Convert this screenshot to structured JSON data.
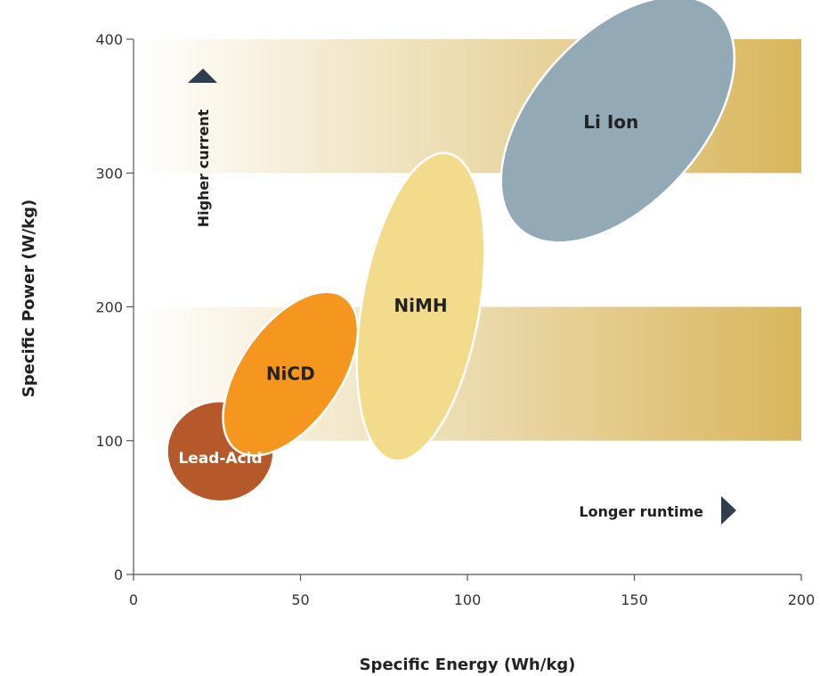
{
  "chart_data": {
    "type": "scatter",
    "xlabel": "Specific Energy (Wh/kg)",
    "ylabel": "Specific Power (W/kg)",
    "xlim": [
      0,
      200
    ],
    "ylim": [
      0,
      400
    ],
    "xticks": [
      0,
      50,
      100,
      150,
      200
    ],
    "yticks": [
      0,
      100,
      200,
      300,
      400
    ],
    "grid": false,
    "bands": [
      {
        "y_from": 300,
        "y_to": 400,
        "x_from": 0,
        "x_to": 200,
        "gradient": [
          "#ffffff",
          "#d8b65c"
        ]
      },
      {
        "y_from": 100,
        "y_to": 200,
        "x_from": 0,
        "x_to": 200,
        "gradient": [
          "#ffffff",
          "#d8b65c"
        ]
      }
    ],
    "series": [
      {
        "name": "Lead-Acid",
        "color": "#b5592a",
        "text_color": "#ffffff",
        "center": [
          26,
          92
        ],
        "x_range": [
          10,
          42
        ],
        "y_range": [
          55,
          130
        ]
      },
      {
        "name": "NiCD",
        "color": "#f5961e",
        "text_color": "#222222",
        "center": [
          47,
          150
        ],
        "x_range": [
          27,
          67
        ],
        "y_range": [
          85,
          215
        ]
      },
      {
        "name": "NiMH",
        "color": "#f2dc8c",
        "text_color": "#222222",
        "center": [
          86,
          200
        ],
        "x_range": [
          68,
          107
        ],
        "y_range": [
          80,
          320
        ]
      },
      {
        "name": "Li Ion",
        "color": "#93a9b6",
        "text_color": "#222222",
        "center": [
          145,
          340
        ],
        "x_range": [
          108,
          180
        ],
        "y_range": [
          245,
          425
        ]
      }
    ],
    "annotations": [
      {
        "text": "Higher current",
        "arrow": "up"
      },
      {
        "text": "Longer runtime",
        "arrow": "right"
      }
    ],
    "colors": {
      "axis": "#555555",
      "arrow": "#2f3d4f"
    }
  }
}
